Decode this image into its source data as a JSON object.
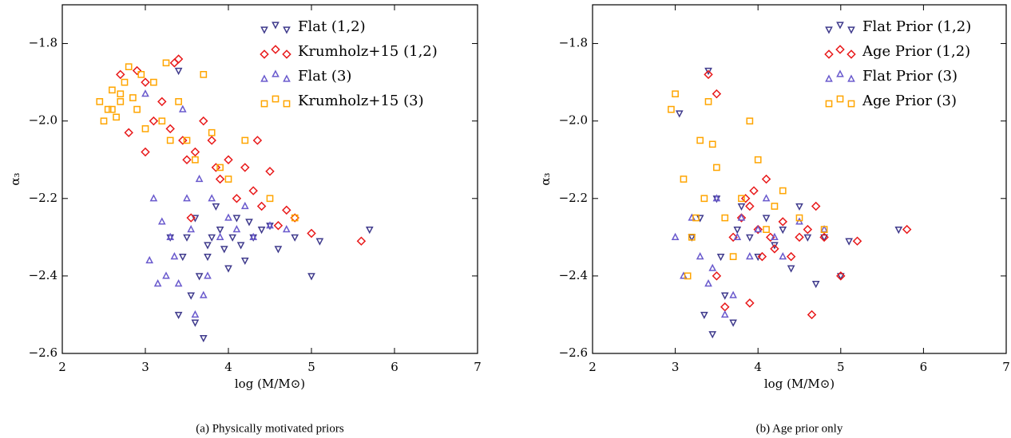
{
  "chart_data": [
    {
      "type": "scatter",
      "caption": "(a) Physically motivated priors",
      "xlabel": "log (M/M⊙)",
      "ylabel": "α₃",
      "xlim": [
        2,
        7
      ],
      "ylim": [
        -2.6,
        -1.7
      ],
      "xticks": [
        2,
        3,
        4,
        5,
        6,
        7
      ],
      "yticks": [
        {
          "value": -2.6,
          "label": "−2.6"
        },
        {
          "value": -2.4,
          "label": "−2.4"
        },
        {
          "value": -2.2,
          "label": "−2.2"
        },
        {
          "value": -2.0,
          "label": "−2.0"
        },
        {
          "value": -1.8,
          "label": "−1.8"
        }
      ],
      "legend": "upper right",
      "series": [
        {
          "name": "Flat (1,2)",
          "color": "#3f3a8c",
          "marker": "triangle-down",
          "x": [
            3.4,
            3.45,
            3.5,
            3.55,
            3.6,
            3.65,
            3.7,
            3.75,
            3.8,
            3.85,
            3.9,
            3.95,
            4.0,
            4.05,
            4.1,
            4.15,
            4.2,
            4.3,
            4.4,
            4.5,
            4.6,
            4.8,
            5.0,
            5.1,
            5.7,
            3.3,
            3.4,
            3.75,
            3.6,
            4.25
          ],
          "values": [
            -2.5,
            -2.35,
            -2.3,
            -2.45,
            -2.25,
            -2.4,
            -2.56,
            -2.35,
            -2.3,
            -2.22,
            -2.28,
            -2.33,
            -2.38,
            -2.3,
            -2.25,
            -2.32,
            -2.36,
            -2.3,
            -2.28,
            -2.27,
            -2.33,
            -2.3,
            -2.4,
            -2.31,
            -2.28,
            -2.3,
            -1.87,
            -2.32,
            -2.52,
            -2.26
          ]
        },
        {
          "name": "Krumholz+15 (1,2)",
          "color": "#e8191a",
          "marker": "diamond",
          "x": [
            2.7,
            2.8,
            2.9,
            3.0,
            3.1,
            3.2,
            3.3,
            3.4,
            3.45,
            3.5,
            3.6,
            3.7,
            3.8,
            3.85,
            3.9,
            4.0,
            4.1,
            4.2,
            4.3,
            4.4,
            4.5,
            4.6,
            4.7,
            4.8,
            5.0,
            5.6,
            3.0,
            3.35,
            4.35,
            3.55
          ],
          "values": [
            -1.88,
            -2.03,
            -1.87,
            -1.9,
            -2.0,
            -1.95,
            -2.02,
            -1.84,
            -2.05,
            -2.1,
            -2.08,
            -2.0,
            -2.05,
            -2.12,
            -2.15,
            -2.1,
            -2.2,
            -2.12,
            -2.18,
            -2.22,
            -2.13,
            -2.27,
            -2.23,
            -2.25,
            -2.29,
            -2.31,
            -2.08,
            -1.85,
            -2.05,
            -2.25
          ]
        },
        {
          "name": "Flat (3)",
          "color": "#6a5acd",
          "marker": "triangle-up",
          "x": [
            3.0,
            3.05,
            3.1,
            3.2,
            3.25,
            3.3,
            3.35,
            3.4,
            3.5,
            3.55,
            3.6,
            3.7,
            3.8,
            3.9,
            4.0,
            4.1,
            4.2,
            4.3,
            4.5,
            4.7,
            3.15,
            3.45,
            3.75,
            3.65
          ],
          "values": [
            -1.93,
            -2.36,
            -2.2,
            -2.26,
            -2.4,
            -2.3,
            -2.35,
            -2.42,
            -2.2,
            -2.28,
            -2.5,
            -2.45,
            -2.2,
            -2.3,
            -2.25,
            -2.28,
            -2.22,
            -2.3,
            -2.27,
            -2.28,
            -2.42,
            -1.97,
            -2.4,
            -2.15
          ]
        },
        {
          "name": "Krumholz+15 (3)",
          "color": "#ffa500",
          "marker": "square",
          "x": [
            2.45,
            2.5,
            2.55,
            2.6,
            2.65,
            2.7,
            2.75,
            2.8,
            2.85,
            2.9,
            2.95,
            3.0,
            3.1,
            3.2,
            3.25,
            3.3,
            3.4,
            3.5,
            3.6,
            3.7,
            3.8,
            3.9,
            4.0,
            4.2,
            4.5,
            4.8,
            2.6,
            2.7
          ],
          "values": [
            -1.95,
            -2.0,
            -1.97,
            -1.92,
            -1.99,
            -1.95,
            -1.9,
            -1.86,
            -1.94,
            -1.97,
            -1.88,
            -2.02,
            -1.9,
            -2.0,
            -1.85,
            -2.05,
            -1.95,
            -2.05,
            -2.1,
            -1.88,
            -2.03,
            -2.12,
            -2.15,
            -2.05,
            -2.2,
            -2.25,
            -1.97,
            -1.93
          ]
        }
      ]
    },
    {
      "type": "scatter",
      "caption": "(b) Age prior only",
      "xlabel": "log (M/M⊙)",
      "ylabel": "α₃",
      "xlim": [
        2,
        7
      ],
      "ylim": [
        -2.6,
        -1.7
      ],
      "xticks": [
        2,
        3,
        4,
        5,
        6,
        7
      ],
      "yticks": [
        {
          "value": -2.6,
          "label": "−2.6"
        },
        {
          "value": -2.4,
          "label": "−2.4"
        },
        {
          "value": -2.2,
          "label": "−2.2"
        },
        {
          "value": -2.0,
          "label": "−2.0"
        },
        {
          "value": -1.8,
          "label": "−1.8"
        }
      ],
      "legend": "upper right",
      "series": [
        {
          "name": "Flat Prior (1,2)",
          "color": "#3f3a8c",
          "marker": "triangle-down",
          "x": [
            3.05,
            3.2,
            3.3,
            3.4,
            3.45,
            3.5,
            3.55,
            3.6,
            3.7,
            3.75,
            3.8,
            3.9,
            4.0,
            4.1,
            4.2,
            4.3,
            4.4,
            4.5,
            4.6,
            4.7,
            4.8,
            5.0,
            5.1,
            5.7,
            3.35
          ],
          "values": [
            -1.98,
            -2.3,
            -2.25,
            -1.87,
            -2.55,
            -2.2,
            -2.35,
            -2.45,
            -2.52,
            -2.28,
            -2.22,
            -2.3,
            -2.35,
            -2.25,
            -2.32,
            -2.28,
            -2.38,
            -2.22,
            -2.3,
            -2.42,
            -2.3,
            -2.4,
            -2.31,
            -2.28,
            -2.5
          ]
        },
        {
          "name": "Age Prior (1,2)",
          "color": "#e8191a",
          "marker": "diamond",
          "x": [
            3.4,
            3.5,
            3.5,
            3.6,
            3.7,
            3.8,
            3.85,
            3.9,
            3.95,
            4.0,
            4.05,
            4.1,
            4.15,
            4.2,
            4.3,
            4.4,
            4.5,
            4.6,
            4.65,
            4.7,
            4.8,
            5.0,
            5.2,
            5.8,
            3.9
          ],
          "values": [
            -1.88,
            -1.93,
            -2.4,
            -2.48,
            -2.3,
            -2.25,
            -2.2,
            -2.22,
            -2.18,
            -2.28,
            -2.35,
            -2.15,
            -2.3,
            -2.33,
            -2.26,
            -2.35,
            -2.3,
            -2.28,
            -2.5,
            -2.22,
            -2.3,
            -2.4,
            -2.31,
            -2.28,
            -2.47
          ]
        },
        {
          "name": "Flat Prior (3)",
          "color": "#6a5acd",
          "marker": "triangle-up",
          "x": [
            3.0,
            3.1,
            3.2,
            3.3,
            3.4,
            3.5,
            3.6,
            3.7,
            3.75,
            3.8,
            3.9,
            4.0,
            4.1,
            4.2,
            4.3,
            4.5,
            4.8,
            3.45
          ],
          "values": [
            -2.3,
            -2.4,
            -2.25,
            -2.35,
            -2.42,
            -2.2,
            -2.5,
            -2.45,
            -2.3,
            -2.25,
            -2.35,
            -2.28,
            -2.2,
            -2.3,
            -2.35,
            -2.26,
            -2.28,
            -2.38
          ]
        },
        {
          "name": "Age Prior (3)",
          "color": "#ffa500",
          "marker": "square",
          "x": [
            2.95,
            3.0,
            3.1,
            3.2,
            3.3,
            3.35,
            3.4,
            3.5,
            3.6,
            3.7,
            3.8,
            3.9,
            4.0,
            4.1,
            4.2,
            4.3,
            4.5,
            4.8,
            3.25,
            3.45,
            3.15
          ],
          "values": [
            -1.97,
            -1.93,
            -2.15,
            -2.3,
            -2.05,
            -2.2,
            -1.95,
            -2.12,
            -2.25,
            -2.35,
            -2.2,
            -2.0,
            -2.1,
            -2.28,
            -2.22,
            -2.18,
            -2.25,
            -2.28,
            -2.25,
            -2.06,
            -2.4
          ]
        }
      ]
    }
  ]
}
